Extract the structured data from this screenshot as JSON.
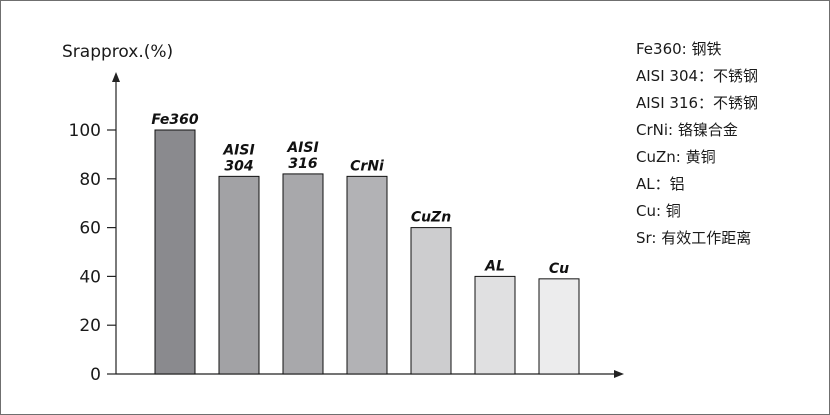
{
  "chart_data": {
    "type": "bar",
    "ylabel": "Srapprox.(%)",
    "ylim": [
      0,
      100
    ],
    "yticks": [
      0,
      20,
      40,
      60,
      80,
      100
    ],
    "grid": false,
    "categories": [
      "Fe360",
      "AISI 304",
      "AISI 316",
      "CrNi",
      "CuZn",
      "AL",
      "Cu"
    ],
    "bar_labels": [
      [
        "Fe360"
      ],
      [
        "AISI",
        "304"
      ],
      [
        "AISI",
        "316"
      ],
      [
        "CrNi"
      ],
      [
        "CuZn"
      ],
      [
        "AL"
      ],
      [
        "Cu"
      ]
    ],
    "values": [
      100,
      81,
      82,
      81,
      60,
      40,
      39
    ],
    "colors": [
      "#8a8a8e",
      "#a2a2a5",
      "#a8a8ab",
      "#b2b2b5",
      "#cdcdcf",
      "#e0e0e1",
      "#ececed"
    ],
    "legend_placement": "right",
    "legend": [
      "Fe360: 钢铁",
      "AISI 304：不锈钢",
      "AISI 316：不锈钢",
      "CrNi: 铬镍合金",
      "CuZn: 黄铜",
      "AL：铝",
      "Cu: 铜",
      "Sr: 有效工作距离"
    ]
  }
}
